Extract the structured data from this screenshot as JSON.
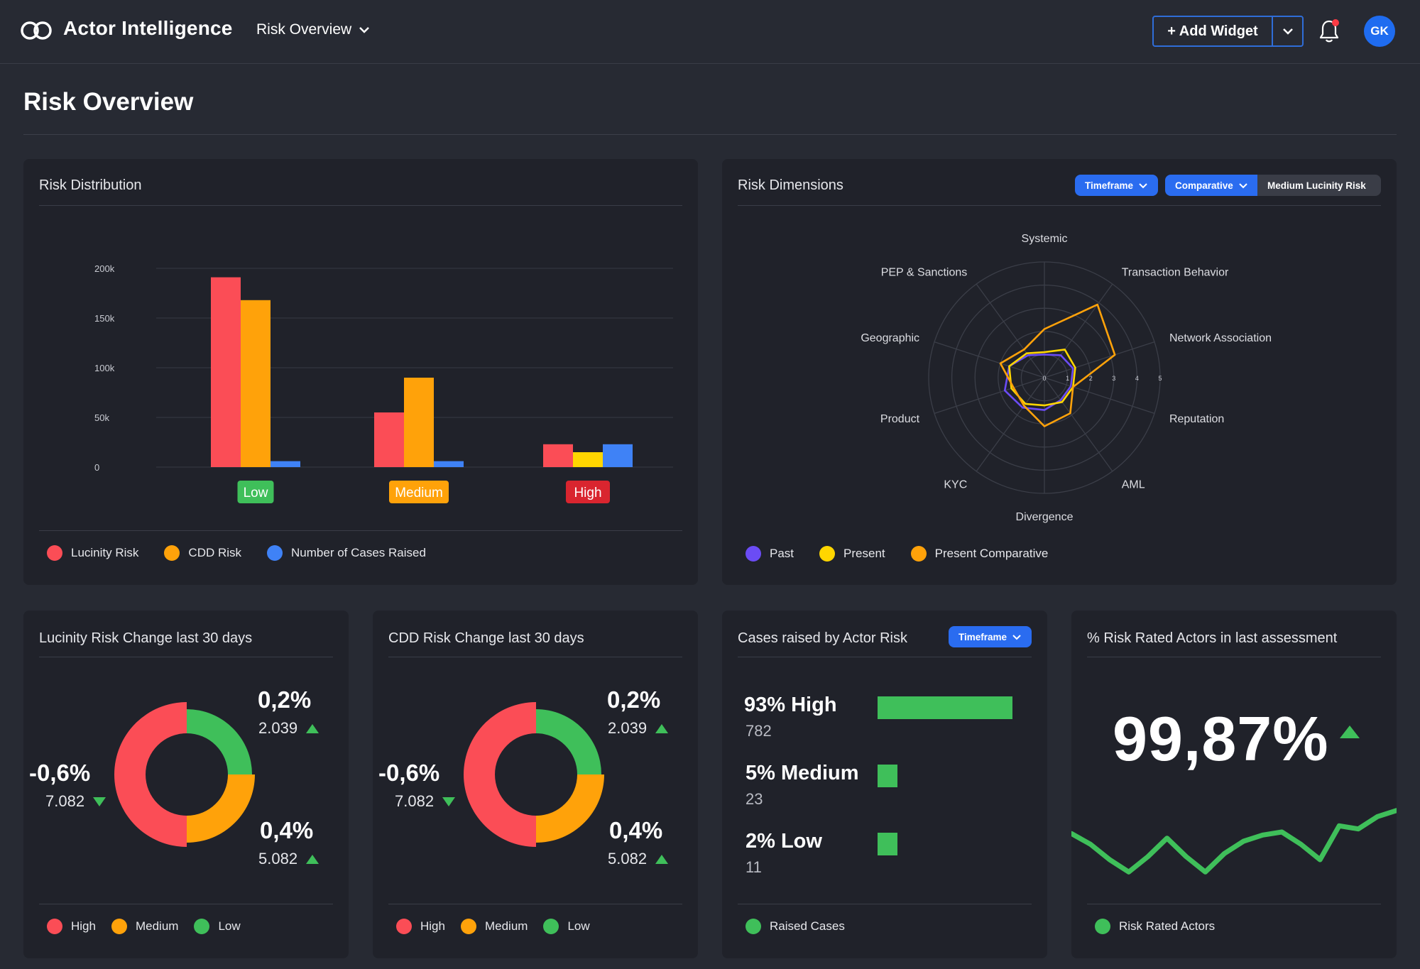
{
  "app": {
    "title": "Actor Intelligence",
    "view_label": "Risk Overview",
    "add_widget_label": "+ Add Widget",
    "avatar_initials": "GK"
  },
  "page": {
    "title": "Risk Overview"
  },
  "colors": {
    "red": "#fb4d56",
    "orange": "#ffa20a",
    "blue": "#3f82f6",
    "yellow": "#ffd600",
    "green": "#3fbf5a",
    "purple": "#6b4cf5",
    "bg": "#272a33",
    "card": "#20222a"
  },
  "risk_distribution": {
    "title": "Risk Distribution",
    "legend": [
      "Lucinity Risk",
      "CDD Risk",
      "Number of Cases Raised"
    ],
    "category_badges": [
      "Low",
      "Medium",
      "High"
    ]
  },
  "risk_dimensions": {
    "title": "Risk Dimensions",
    "filters": {
      "timeframe": "Timeframe",
      "comparative": "Comparative",
      "medium": "Medium Lucinity Risk"
    },
    "legend": [
      "Past",
      "Present",
      "Present Comparative"
    ]
  },
  "lucinity_change": {
    "title": "Lucinity Risk Change last 30 days",
    "left_pct": "-0,6%",
    "left_val": "7.082",
    "top_pct": "0,2%",
    "top_val": "2.039",
    "bottom_pct": "0,4%",
    "bottom_val": "5.082",
    "legend": [
      "High",
      "Medium",
      "Low"
    ]
  },
  "cdd_change": {
    "title": "CDD Risk Change last 30 days",
    "left_pct": "-0,6%",
    "left_val": "7.082",
    "top_pct": "0,2%",
    "top_val": "2.039",
    "bottom_pct": "0,4%",
    "bottom_val": "5.082",
    "legend": [
      "High",
      "Medium",
      "Low"
    ]
  },
  "cases_raised": {
    "title": "Cases raised by Actor Risk",
    "filter": "Timeframe",
    "rows": [
      {
        "label": "93% High",
        "count": "782",
        "share": 0.93
      },
      {
        "label": "5% Medium",
        "count": "23",
        "share": 0.05
      },
      {
        "label": "2% Low",
        "count": "11",
        "share": 0.02
      }
    ],
    "legend": [
      "Raised Cases"
    ]
  },
  "risk_rated": {
    "title": "% Risk Rated Actors in last assessment",
    "value": "99,87%",
    "legend": [
      "Risk Rated Actors"
    ]
  },
  "chart_data": [
    {
      "type": "bar",
      "categories": [
        "Low",
        "Medium",
        "High"
      ],
      "series": [
        {
          "name": "Lucinity Risk",
          "values": [
            191000,
            55000,
            23000
          ]
        },
        {
          "name": "CDD Risk",
          "values": [
            168000,
            90000,
            15000
          ]
        },
        {
          "name": "Number of Cases Raised",
          "values": [
            6000,
            6000,
            23000
          ]
        }
      ],
      "yticks": [
        "0",
        "50k",
        "100k",
        "150k",
        "200k"
      ],
      "ylim": [
        0,
        200000
      ],
      "bar_colors_high": [
        "#fb4d56",
        "#ffd600",
        "#3f82f6"
      ],
      "legend": "bottom-left"
    },
    {
      "type": "radar",
      "axes": [
        "Systemic",
        "Transaction Behavior",
        "Network Association",
        "Reputation",
        "AML",
        "Divergence",
        "KYC",
        "Product",
        "Geographic",
        "PEP & Sanctions"
      ],
      "rticks": [
        "0",
        "1",
        "2",
        "3",
        "4",
        "5"
      ],
      "rlim": [
        0,
        5
      ],
      "series": [
        {
          "name": "Past",
          "values": [
            1.0,
            1.2,
            1.3,
            1.2,
            1.2,
            1.4,
            1.6,
            1.8,
            1.6,
            1.2
          ]
        },
        {
          "name": "Present",
          "values": [
            1.1,
            1.5,
            1.4,
            1.3,
            1.3,
            1.2,
            1.4,
            1.5,
            1.6,
            1.3
          ]
        },
        {
          "name": "Present Comparative",
          "values": [
            2.1,
            3.9,
            3.2,
            1.3,
            1.9,
            2.1,
            1.5,
            1.4,
            2.0,
            1.5
          ]
        }
      ],
      "legend": "bottom-left"
    },
    {
      "type": "pie",
      "name": "Lucinity Risk Change last 30 days",
      "slices": [
        {
          "name": "High",
          "value": 50
        },
        {
          "name": "Medium",
          "value": 25
        },
        {
          "name": "Low",
          "value": 25
        }
      ]
    },
    {
      "type": "pie",
      "name": "CDD Risk Change last 30 days",
      "slices": [
        {
          "name": "High",
          "value": 50
        },
        {
          "name": "Medium",
          "value": 25
        },
        {
          "name": "Low",
          "value": 25
        }
      ]
    },
    {
      "type": "line",
      "name": "Risk Rated Actors",
      "values": [
        45,
        38,
        28,
        20,
        30,
        42,
        30,
        20,
        32,
        40,
        44,
        46,
        38,
        28,
        50,
        48,
        56,
        60
      ]
    }
  ]
}
